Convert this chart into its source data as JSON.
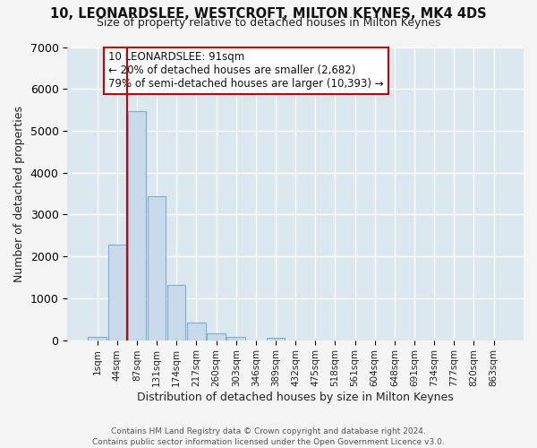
{
  "title": "10, LEONARDSLEE, WESTCROFT, MILTON KEYNES, MK4 4DS",
  "subtitle": "Size of property relative to detached houses in Milton Keynes",
  "xlabel": "Distribution of detached houses by size in Milton Keynes",
  "ylabel": "Number of detached properties",
  "bar_labels": [
    "1sqm",
    "44sqm",
    "87sqm",
    "131sqm",
    "174sqm",
    "217sqm",
    "260sqm",
    "303sqm",
    "346sqm",
    "389sqm",
    "432sqm",
    "475sqm",
    "518sqm",
    "561sqm",
    "604sqm",
    "648sqm",
    "691sqm",
    "734sqm",
    "777sqm",
    "820sqm",
    "863sqm"
  ],
  "bar_values": [
    70,
    2280,
    5470,
    3440,
    1320,
    430,
    165,
    75,
    0,
    55,
    0,
    0,
    0,
    0,
    0,
    0,
    0,
    0,
    0,
    0,
    0
  ],
  "bar_color": "#c9daea",
  "bar_edge_color": "#7bafd4",
  "vline_color": "#cc0000",
  "ylim": [
    0,
    7000
  ],
  "annotation_title": "10 LEONARDSLEE: 91sqm",
  "annotation_line1": "← 20% of detached houses are smaller (2,682)",
  "annotation_line2": "79% of semi-detached houses are larger (10,393) →",
  "annotation_box_color": "white",
  "annotation_box_edge": "#cc0000",
  "footer1": "Contains HM Land Registry data © Crown copyright and database right 2024.",
  "footer2": "Contains public sector information licensed under the Open Government Licence v3.0.",
  "plot_bg_color": "#dce8f0",
  "fig_bg_color": "#f5f5f5",
  "grid_color": "white"
}
